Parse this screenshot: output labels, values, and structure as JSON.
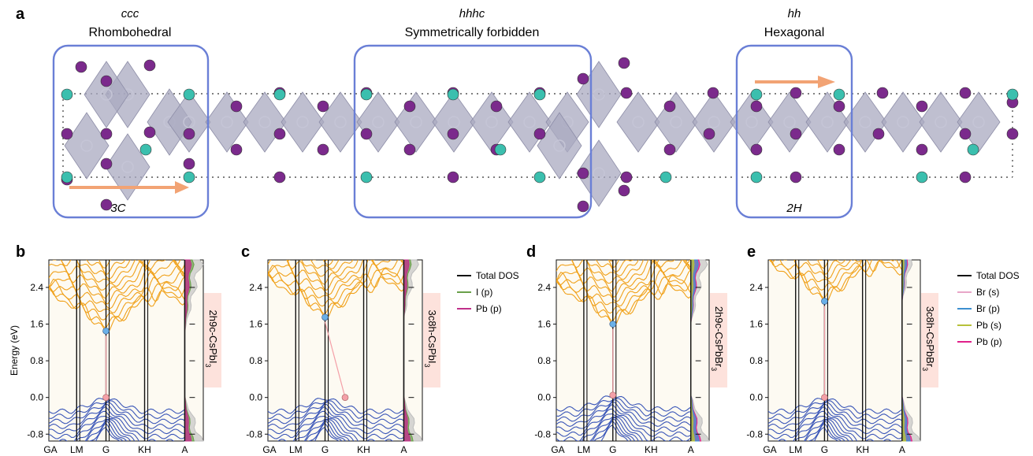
{
  "panel_a": {
    "letter": "a",
    "regions": [
      {
        "stacking": "ccc",
        "name": "Rhombohedral",
        "label": "3C"
      },
      {
        "stacking": "hhhc",
        "name": "Symmetrically forbidden",
        "label": ""
      },
      {
        "stacking": "hh",
        "name": "Hexagonal",
        "label": "2H"
      }
    ],
    "colors": {
      "box": "#6a7fd6",
      "octahedra": "#a9a9c0",
      "halide_atom": "#7b2a8c",
      "cs_atom": "#3bbfae",
      "arrow": "#f2a374"
    }
  },
  "ylabel": "Energy (eV)",
  "ktick_labels": [
    "GA",
    "LM",
    "G",
    "KH",
    "A"
  ],
  "yticks": [
    "2.4",
    "1.6",
    "0.8",
    "0.0",
    "-0.8"
  ],
  "legend_I": [
    "Total DOS",
    "I (p)",
    "Pb (p)"
  ],
  "legend_Br": [
    "Total DOS",
    "Br (s)",
    "Br (p)",
    "Pb (s)",
    "Pb (p)"
  ],
  "band_panels": [
    {
      "letter": "b",
      "material": "2h9c-CsPbI",
      "subscript": "3"
    },
    {
      "letter": "c",
      "material": "3c8h-CsPbI",
      "subscript": "3"
    },
    {
      "letter": "d",
      "material": "2h9c-CsPbBr",
      "subscript": "3"
    },
    {
      "letter": "e",
      "material": "3c8h-CsPbBr",
      "subscript": "3"
    }
  ],
  "colors": {
    "conduction": "#f0a11a",
    "valence": "#3a56b8",
    "total_dos": "#111111",
    "I_p": "#6aa04a",
    "Pb_p": "#c0308a",
    "Br_s": "#e8a6c8",
    "Br_p": "#3d8fd0",
    "Pb_s": "#b7c13a",
    "Pb_p_Br": "#e0208a",
    "label_bg": "#fde2dc",
    "panel_bg": "#fdfaf2"
  },
  "chart_data": [
    {
      "type": "line",
      "title": "",
      "xlabel": "",
      "ylabel": "Energy (eV)",
      "ylim": [
        -0.95,
        3.0
      ],
      "x": [
        "GA",
        "LM",
        "G",
        "KH",
        "A"
      ],
      "cbm_eV": 1.45,
      "vbm_eV": 0.0,
      "legend": [
        "Total DOS",
        "I (p)",
        "Pb (p)"
      ],
      "material": "2h9c-CsPbI3"
    },
    {
      "type": "line",
      "title": "",
      "xlabel": "",
      "ylabel": "",
      "ylim": [
        -0.95,
        3.0
      ],
      "x": [
        "GA",
        "LM",
        "G",
        "KH",
        "A"
      ],
      "cbm_eV": 1.75,
      "vbm_eV": 0.0,
      "legend": [
        "Total DOS",
        "I (p)",
        "Pb (p)"
      ],
      "material": "3c8h-CsPbI3"
    },
    {
      "type": "line",
      "title": "",
      "xlabel": "",
      "ylabel": "",
      "ylim": [
        -0.95,
        3.0
      ],
      "x": [
        "GA",
        "LM",
        "G",
        "KH",
        "A"
      ],
      "cbm_eV": 1.6,
      "vbm_eV": 0.05,
      "legend": [
        "Total DOS",
        "Br (s)",
        "Br (p)",
        "Pb (s)",
        "Pb (p)"
      ],
      "material": "2h9c-CsPbBr3"
    },
    {
      "type": "line",
      "title": "",
      "xlabel": "",
      "ylabel": "",
      "ylim": [
        -0.95,
        3.0
      ],
      "x": [
        "GA",
        "LM",
        "G",
        "KH",
        "A"
      ],
      "cbm_eV": 2.1,
      "vbm_eV": 0.0,
      "legend": [
        "Total DOS",
        "Br (s)",
        "Br (p)",
        "Pb (s)",
        "Pb (p)"
      ],
      "material": "3c8h-CsPbBr3"
    }
  ]
}
